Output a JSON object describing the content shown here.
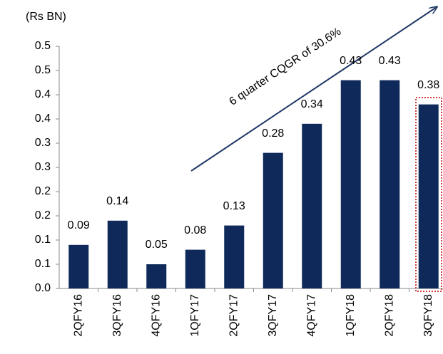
{
  "chart_data": {
    "type": "bar",
    "unit_label": "(Rs BN)",
    "annotation": "6 quarter CQGR of 30.6%",
    "categories": [
      "2QFY16",
      "3QFY16",
      "4QFY16",
      "1QFY17",
      "2QFY17",
      "3QFY17",
      "4QFY17",
      "1QFY18",
      "2QFY18",
      "3QFY18"
    ],
    "values": [
      0.09,
      0.14,
      0.05,
      0.08,
      0.13,
      0.28,
      0.34,
      0.43,
      0.43,
      0.38
    ],
    "color": "#0f2a5a",
    "ylim": [
      0,
      0.5
    ],
    "yticks": [
      {
        "value": 0,
        "label": "0.0"
      },
      {
        "value": 0.05,
        "label": "0.1"
      },
      0.1,
      {
        "value": 0.15,
        "label": "0.2"
      },
      0.2,
      {
        "value": 0.25,
        "label": "0.3"
      },
      0.3,
      {
        "value": 0.35,
        "label": "0.4"
      },
      0.4,
      {
        "value": 0.45,
        "label": "0.5"
      },
      0.5
    ]
  }
}
